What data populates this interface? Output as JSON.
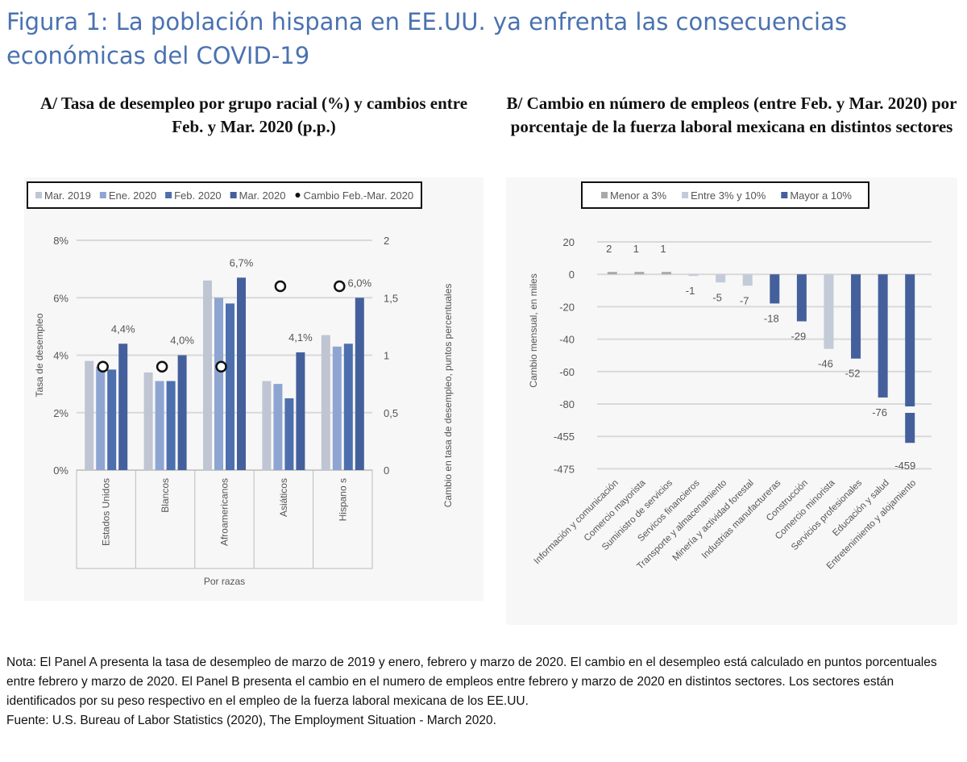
{
  "title": "Figura 1: La población hispana en EE.UU. ya enfrenta las consecuencias económicas del COVID-19",
  "panel_a_title": "A/ Tasa de desempleo por grupo racial (%) y cambios entre Feb. y Mar. 2020 (p.p.)",
  "panel_b_title": "B/ Cambio en número de empleos (entre Feb. y Mar. 2020) por porcentaje de la fuerza laboral mexicana en distintos sectores",
  "chart_data": [
    {
      "type": "bar",
      "title": "A/ Tasa de desempleo por grupo racial (%) y cambios entre Feb. y Mar. 2020 (p.p.)",
      "xlabel": "Por razas",
      "ylabel": "Tasa de desempleo",
      "y2label": "Cambio en tasa de desempleo, puntos percentuales",
      "ylim": [
        0,
        8
      ],
      "y2lim": [
        0,
        2
      ],
      "yticks": [
        "0%",
        "2%",
        "4%",
        "6%",
        "8%"
      ],
      "y2ticks": [
        "0",
        "0,5",
        "1",
        "1,5",
        "2"
      ],
      "categories": [
        "Estados Unidos",
        "Blancos",
        "Afroamericanos",
        "Asiáticos",
        "Hispano s"
      ],
      "series": [
        {
          "name": "Mar. 2019",
          "values": [
            3.8,
            3.4,
            6.6,
            3.1,
            4.7
          ],
          "color": "#bfc5d2"
        },
        {
          "name": "Ene. 2020",
          "values": [
            3.6,
            3.1,
            6.0,
            3.0,
            4.3
          ],
          "color": "#8ea5d2"
        },
        {
          "name": "Feb. 2020",
          "values": [
            3.5,
            3.1,
            5.8,
            2.5,
            4.4
          ],
          "color": "#4d6fae"
        },
        {
          "name": "Mar. 2020",
          "values": [
            4.4,
            4.0,
            6.7,
            4.1,
            6.0
          ],
          "color": "#44609c"
        },
        {
          "name": "Cambio Feb.-Mar. 2020",
          "values": [
            0.9,
            0.9,
            0.9,
            1.6,
            1.6
          ],
          "axis": "secondary",
          "marker": "circle"
        }
      ],
      "data_labels": [
        "4,4%",
        "4,0%",
        "6,7%",
        "4,1%",
        "6,0%"
      ],
      "grid": true,
      "legend": "top"
    },
    {
      "type": "bar",
      "title": "B/ Cambio en número de empleos (entre Feb. y Mar. 2020) por porcentaje de la fuerza laboral mexicana en distintos sectores",
      "ylabel": "Cambio mensual, en miles",
      "yticks": [
        "20",
        "0",
        "-20",
        "-40",
        "-60",
        "-80",
        "-455",
        "-475"
      ],
      "axis_break": [
        -80,
        -455
      ],
      "categories": [
        "Información y comunicación",
        "Comercio mayorista",
        "Suministro de servicios",
        "Servicos financieros",
        "Transporte y almacenamiento",
        "Minería y actividad forestal",
        "Industrias manufactureras",
        "Construcción",
        "Comercio minorista",
        "Servicios profesionales",
        "Educación y salud",
        "Entretenimiento y alojamiento"
      ],
      "values": [
        2,
        1,
        1,
        -1,
        -5,
        -7,
        -18,
        -29,
        -46,
        -52,
        -76,
        -459
      ],
      "data_labels": [
        "2",
        "1",
        "1",
        "-1",
        "-5",
        "-7",
        "-18",
        "-29",
        "-46",
        "-52",
        "-76",
        "-459"
      ],
      "groups": [
        "Menor a 3%",
        "Menor a 3%",
        "Menor a 3%",
        "Entre 3% y 10%",
        "Entre 3% y 10%",
        "Entre 3% y 10%",
        "Mayor a 10%",
        "Mayor a 10%",
        "Entre 3% y 10%",
        "Mayor a 10%",
        "Mayor a 10%",
        "Mayor a 10%"
      ],
      "legend_entries": [
        {
          "name": "Menor a 3%",
          "color": "#a9a9a9"
        },
        {
          "name": "Entre 3% y 10%",
          "color": "#c3cad8"
        },
        {
          "name": "Mayor a 10%",
          "color": "#44609c"
        }
      ],
      "grid": true,
      "legend": "top"
    }
  ],
  "note": "Nota: El Panel A presenta la tasa de desempleo de marzo de 2019 y enero, febrero y marzo de 2020. El cambio en el desempleo está calculado en puntos porcentuales entre febrero y marzo de 2020. El Panel B presenta el cambio en el numero de empleos entre febrero y marzo de 2020 en distintos sectores. Los sectores están identificados por su peso respectivo en el empleo de la fuerza laboral mexicana de los EE.UU.",
  "source": "Fuente: U.S. Bureau of Labor Statistics (2020), The Employment Situation - March 2020."
}
